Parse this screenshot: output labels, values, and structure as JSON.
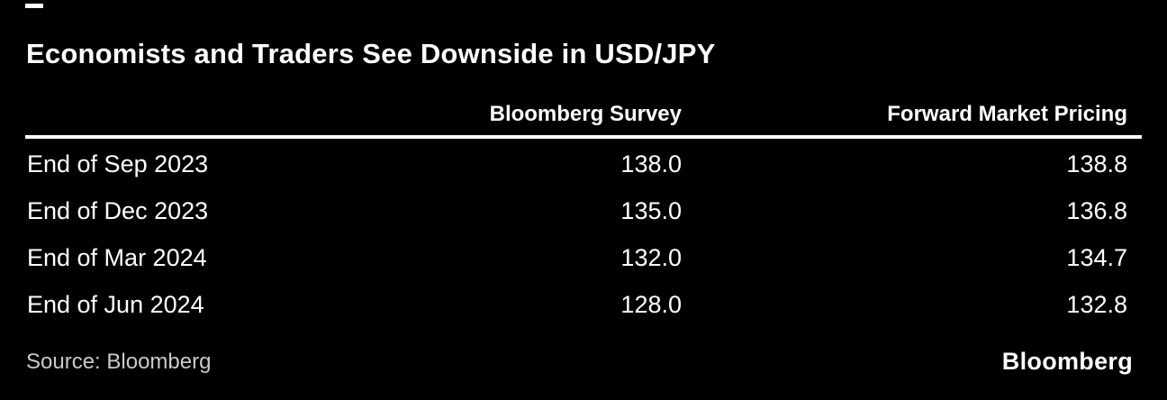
{
  "title": "Economists and Traders See Downside in USD/JPY",
  "table": {
    "label_header": "",
    "col_survey": "Bloomberg Survey",
    "col_forward": "Forward Market Pricing",
    "rows": [
      {
        "label": "End of Sep 2023",
        "survey": "138.0",
        "forward": "138.8"
      },
      {
        "label": "End of Dec 2023",
        "survey": "135.0",
        "forward": "136.8"
      },
      {
        "label": "End of Mar 2024",
        "survey": "132.0",
        "forward": "134.7"
      },
      {
        "label": "End of Jun 2024",
        "survey": "128.0",
        "forward": "132.8"
      }
    ]
  },
  "footer": {
    "source": "Source: Bloomberg",
    "brand": "Bloomberg"
  },
  "colors": {
    "background": "#000000",
    "text": "#ffffff",
    "source_text": "#c9c9c9",
    "rule": "#ffffff"
  },
  "chart_data": {
    "type": "table",
    "title": "Economists and Traders See Downside in USD/JPY",
    "categories": [
      "End of Sep 2023",
      "End of Dec 2023",
      "End of Mar 2024",
      "End of Jun 2024"
    ],
    "series": [
      {
        "name": "Bloomberg Survey",
        "values": [
          138.0,
          135.0,
          132.0,
          128.0
        ]
      },
      {
        "name": "Forward Market Pricing",
        "values": [
          138.8,
          136.8,
          134.7,
          132.8
        ]
      }
    ],
    "source": "Source: Bloomberg",
    "legend_position": "none",
    "grid": false
  }
}
